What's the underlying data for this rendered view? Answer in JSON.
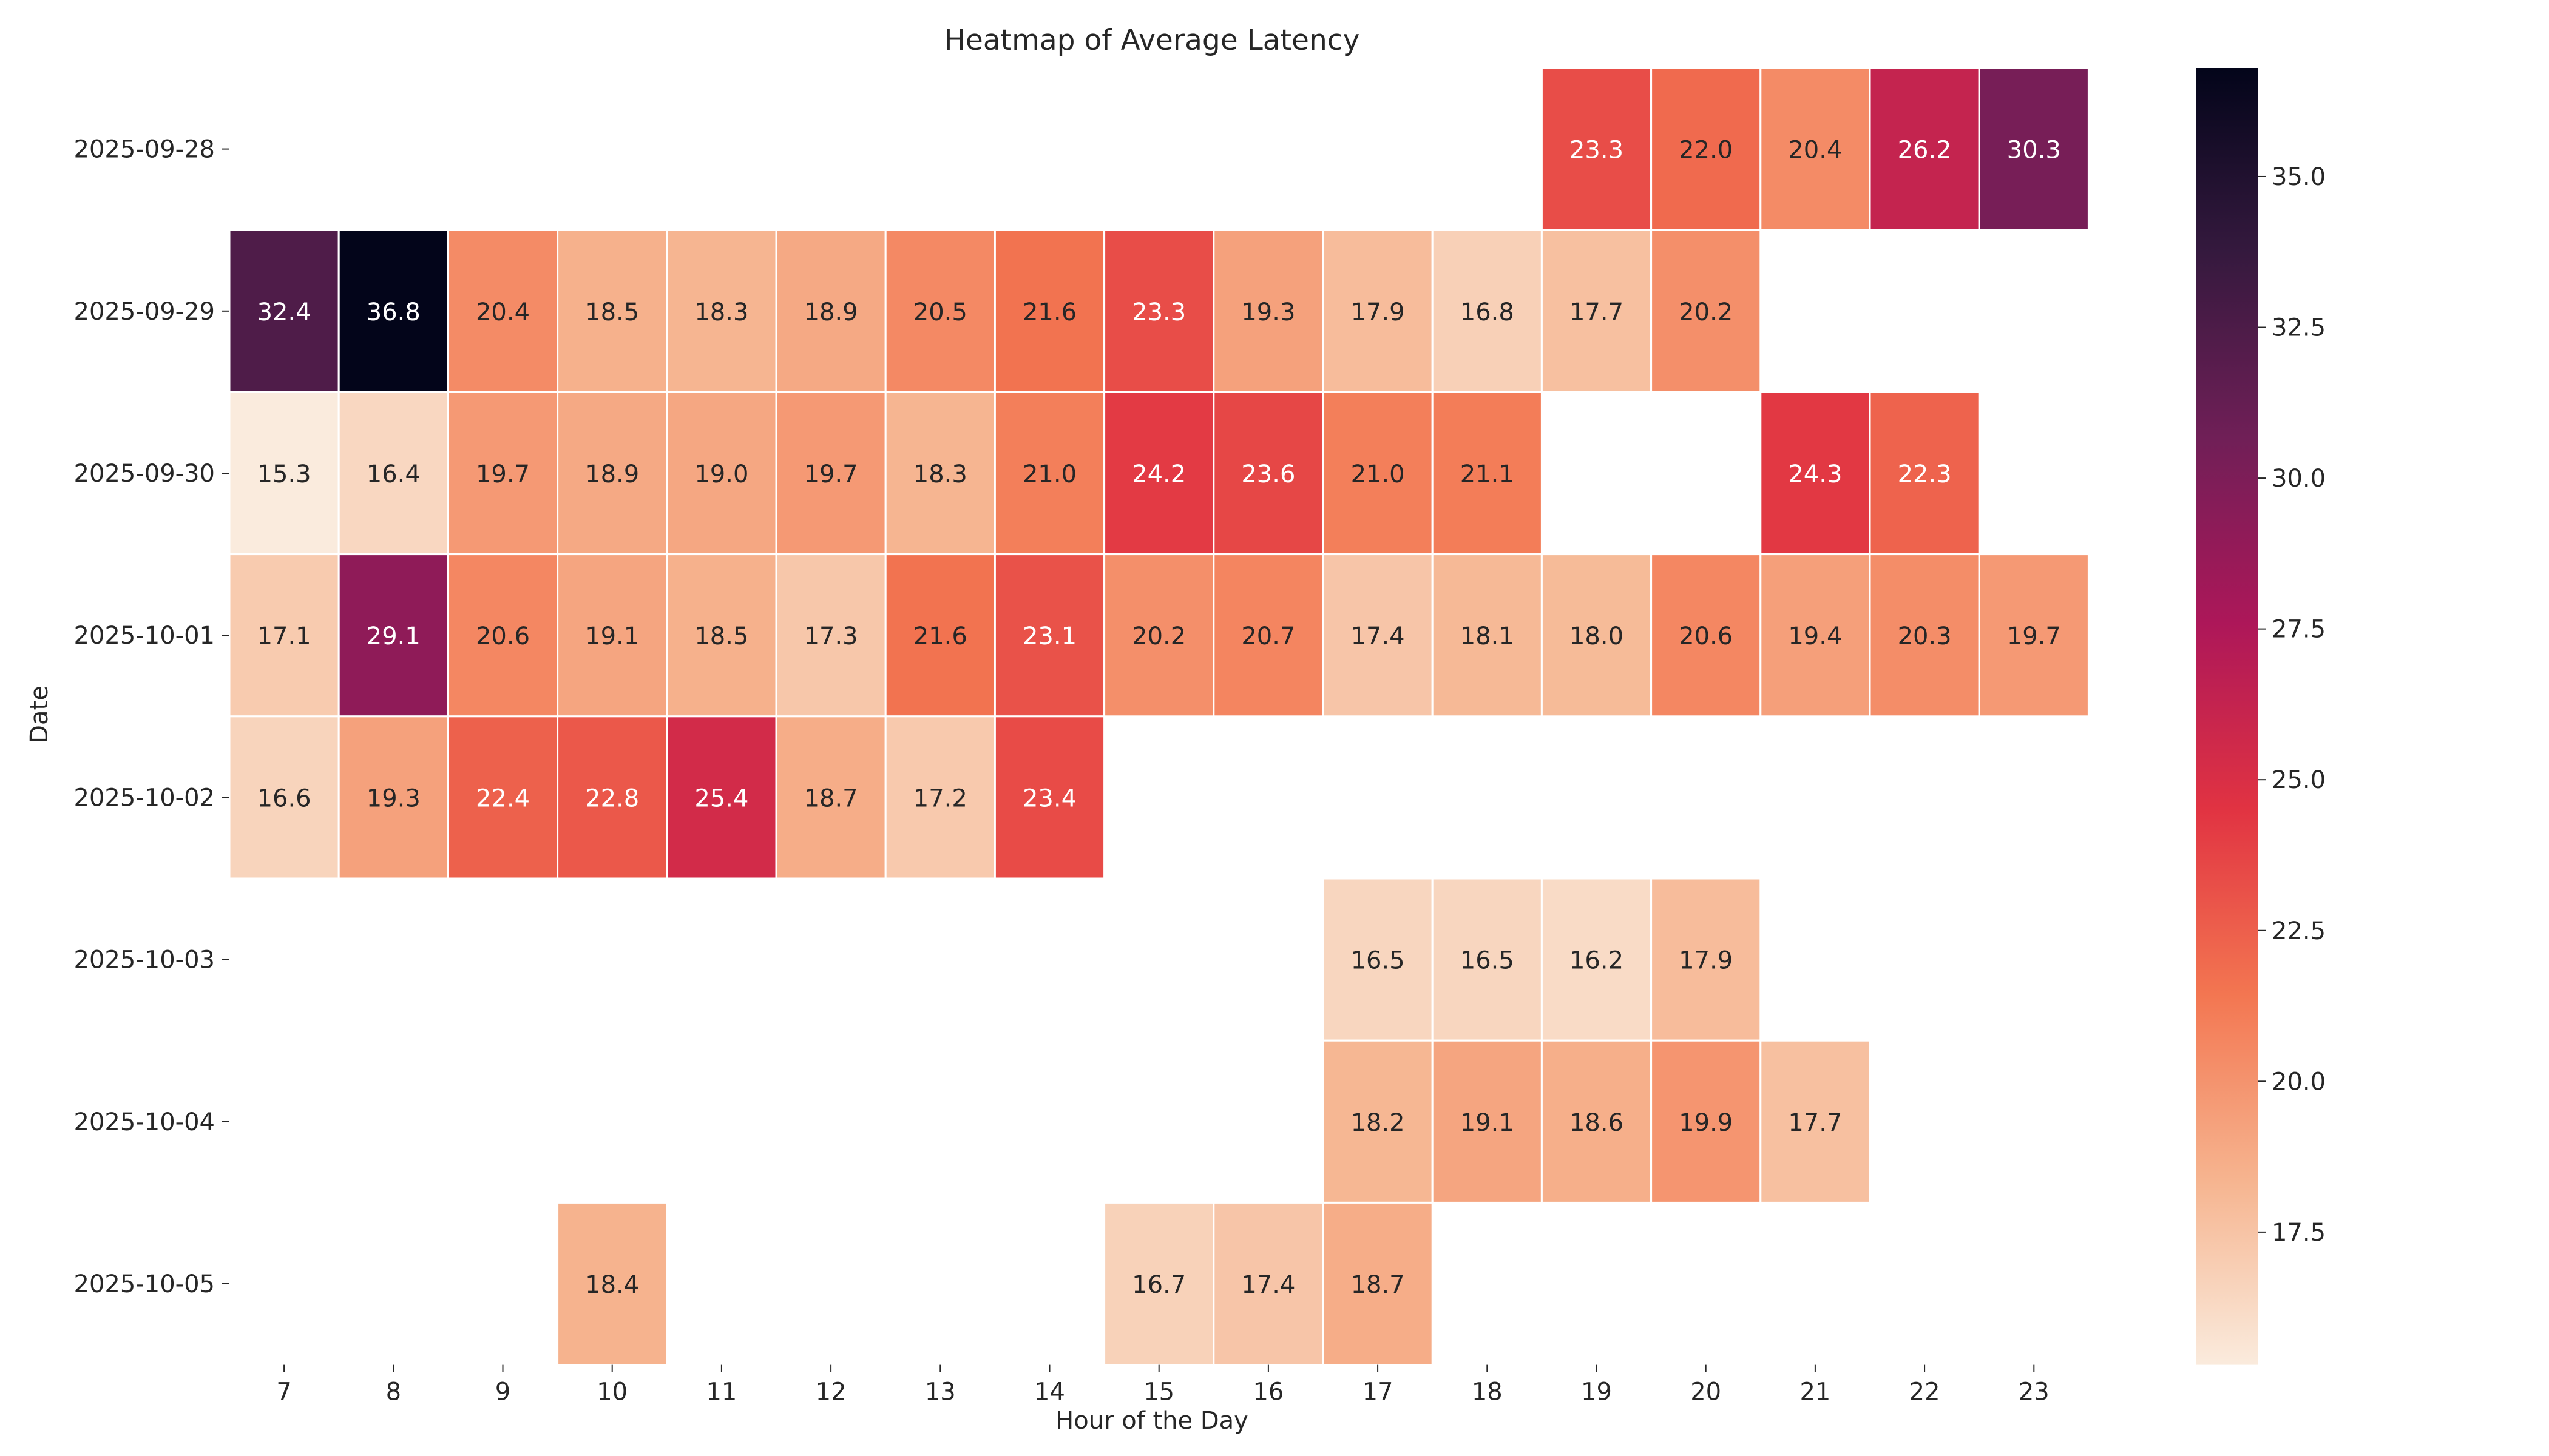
{
  "chart_data": {
    "type": "heatmap",
    "title": "Heatmap of Average Latency",
    "xlabel": "Hour of the Day",
    "ylabel": "Date",
    "x_categories": [
      "7",
      "8",
      "9",
      "10",
      "11",
      "12",
      "13",
      "14",
      "15",
      "16",
      "17",
      "18",
      "19",
      "20",
      "21",
      "22",
      "23"
    ],
    "y_categories": [
      "2025-09-28",
      "2025-09-29",
      "2025-09-30",
      "2025-10-01",
      "2025-10-02",
      "2025-10-03",
      "2025-10-04",
      "2025-10-05"
    ],
    "values": [
      [
        null,
        null,
        null,
        null,
        null,
        null,
        null,
        null,
        null,
        null,
        null,
        null,
        23.3,
        22.0,
        20.4,
        26.2,
        30.3
      ],
      [
        32.4,
        36.8,
        20.4,
        18.5,
        18.3,
        18.9,
        20.5,
        21.6,
        23.3,
        19.3,
        17.9,
        16.8,
        17.7,
        20.2,
        null,
        null,
        null
      ],
      [
        15.3,
        16.4,
        19.7,
        18.9,
        19.0,
        19.7,
        18.3,
        21.0,
        24.2,
        23.6,
        21.0,
        21.1,
        null,
        null,
        24.3,
        22.3,
        null
      ],
      [
        17.1,
        29.1,
        20.6,
        19.1,
        18.5,
        17.3,
        21.6,
        23.1,
        20.2,
        20.7,
        17.4,
        18.1,
        18.0,
        20.6,
        19.4,
        20.3,
        19.7
      ],
      [
        16.6,
        19.3,
        22.4,
        22.8,
        25.4,
        18.7,
        17.2,
        23.4,
        null,
        null,
        null,
        null,
        null,
        null,
        null,
        null,
        null
      ],
      [
        null,
        null,
        null,
        null,
        null,
        null,
        null,
        null,
        null,
        null,
        16.5,
        16.5,
        16.2,
        17.9,
        null,
        null,
        null
      ],
      [
        null,
        null,
        null,
        null,
        null,
        null,
        null,
        null,
        null,
        null,
        18.2,
        19.1,
        18.6,
        19.9,
        17.7,
        null,
        null
      ],
      [
        null,
        null,
        null,
        18.4,
        null,
        null,
        null,
        null,
        16.7,
        17.4,
        18.7,
        null,
        null,
        null,
        null,
        null,
        null
      ]
    ],
    "value_labels": [
      [
        "",
        "",
        "",
        "",
        "",
        "",
        "",
        "",
        "",
        "",
        "",
        "",
        "23.3",
        "22.0",
        "20.4",
        "26.2",
        "30.3"
      ],
      [
        "32.4",
        "36.8",
        "20.4",
        "18.5",
        "18.3",
        "18.9",
        "20.5",
        "21.6",
        "23.3",
        "19.3",
        "17.9",
        "16.8",
        "17.7",
        "20.2",
        "",
        "",
        ""
      ],
      [
        "15.3",
        "16.4",
        "19.7",
        "18.9",
        "19.0",
        "19.7",
        "18.3",
        "21.0",
        "24.2",
        "23.6",
        "21.0",
        "21.1",
        "",
        "",
        "24.3",
        "22.3",
        ""
      ],
      [
        "17.1",
        "29.1",
        "20.6",
        "19.1",
        "18.5",
        "17.3",
        "21.6",
        "23.1",
        "20.2",
        "20.7",
        "17.4",
        "18.1",
        "18.0",
        "20.6",
        "19.4",
        "20.3",
        "19.7"
      ],
      [
        "16.6",
        "19.3",
        "22.4",
        "22.8",
        "25.4",
        "18.7",
        "17.2",
        "23.4",
        "",
        "",
        "",
        "",
        "",
        "",
        "",
        "",
        ""
      ],
      [
        "",
        "",
        "",
        "",
        "",
        "",
        "",
        "",
        "",
        "",
        "16.5",
        "16.5",
        "16.2",
        "17.9",
        "",
        "",
        ""
      ],
      [
        "",
        "",
        "",
        "",
        "",
        "",
        "",
        "",
        "",
        "",
        "18.2",
        "19.1",
        "18.6",
        "19.9",
        "17.7",
        "",
        ""
      ],
      [
        "",
        "",
        "",
        "18.4",
        "",
        "",
        "",
        "",
        "16.7",
        "17.4",
        "18.7",
        "",
        "",
        "",
        "",
        "",
        ""
      ]
    ],
    "colorbar": {
      "range": [
        15.3,
        36.8
      ],
      "ticks": [
        17.5,
        20.0,
        22.5,
        25.0,
        27.5,
        30.0,
        32.5,
        35.0
      ],
      "tick_labels": [
        "17.5",
        "20.0",
        "22.5",
        "25.0",
        "27.5",
        "30.0",
        "32.5",
        "35.0"
      ],
      "colormap": "rocket_r",
      "colormap_stops": [
        "#faebdd",
        "#f6b48f",
        "#f37651",
        "#e13342",
        "#ad1759",
        "#701f57",
        "#35193e",
        "#03051a"
      ]
    },
    "grid": false,
    "legend": "colorbar-right"
  }
}
